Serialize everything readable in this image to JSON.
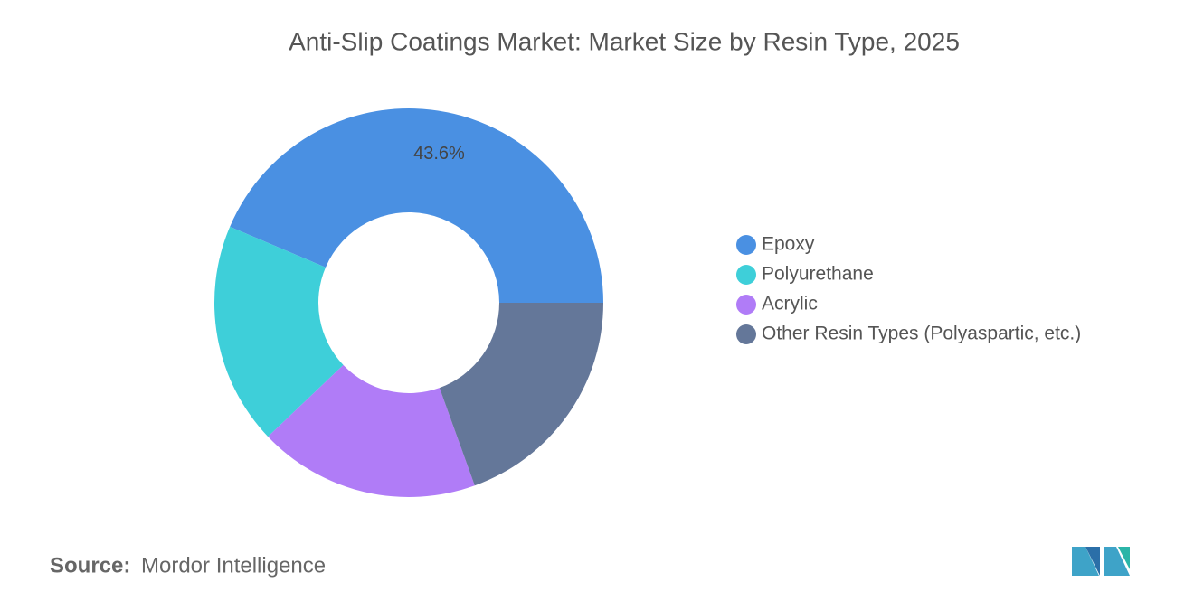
{
  "chart_data": {
    "type": "donut",
    "title": "Anti-Slip Coatings Market: Market Size by Resin Type, 2025",
    "categories": [
      "Epoxy",
      "Polyurethane",
      "Acrylic",
      "Other Resin Types (Polyaspartic, etc.)"
    ],
    "values": [
      43.6,
      18.5,
      18.4,
      19.5
    ],
    "value_labels": [
      "43.6%",
      null,
      null,
      null
    ],
    "colors": [
      "#4a90e2",
      "#3ecfd9",
      "#b07cf7",
      "#647799"
    ],
    "legend": "right"
  },
  "source": {
    "label": "Source:",
    "text": "Mordor Intelligence"
  }
}
